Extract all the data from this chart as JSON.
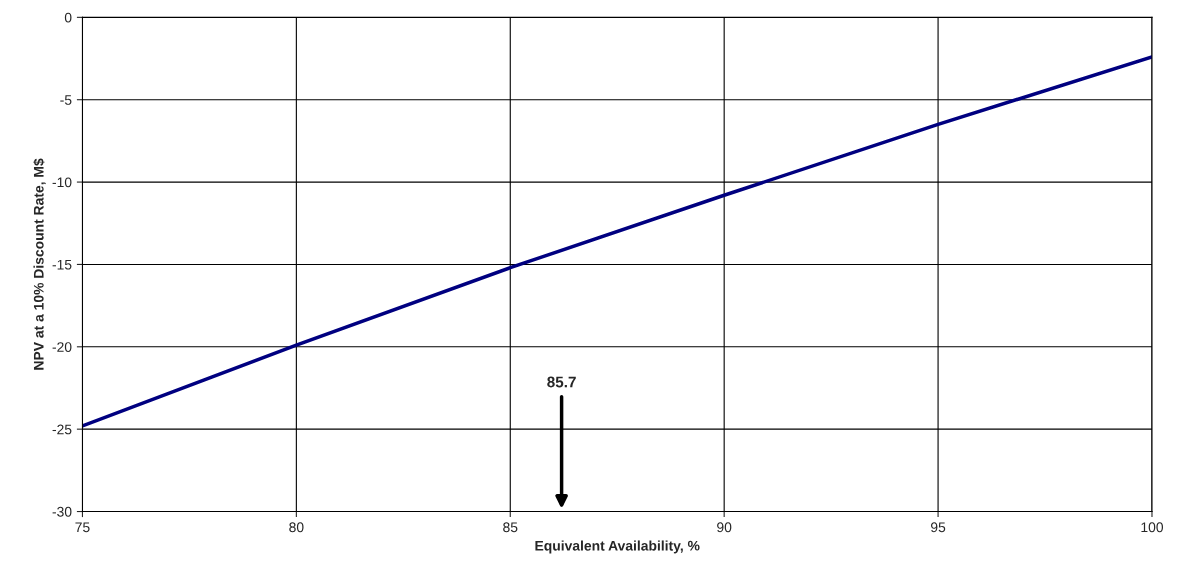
{
  "chart_data": {
    "type": "line",
    "xlabel": "Equivalent Availability, %",
    "ylabel": "NPV at a 10% Discount Rate, M$",
    "x": [
      75,
      80,
      85,
      90,
      95,
      100
    ],
    "series": [
      {
        "color": "#000080",
        "values": [
          -24.8,
          -19.9,
          -15.2,
          -10.8,
          -6.5,
          -2.4
        ]
      }
    ],
    "xlim": [
      75,
      100
    ],
    "xticks": [
      75,
      80,
      85,
      90,
      95,
      100
    ],
    "ylim": [
      -30,
      0
    ],
    "yticks": [
      -30,
      -25,
      -20,
      -15,
      -10,
      -5,
      0
    ],
    "grid": true,
    "marker": "none",
    "line_style": "solid",
    "annotations": [
      "85.7"
    ]
  }
}
